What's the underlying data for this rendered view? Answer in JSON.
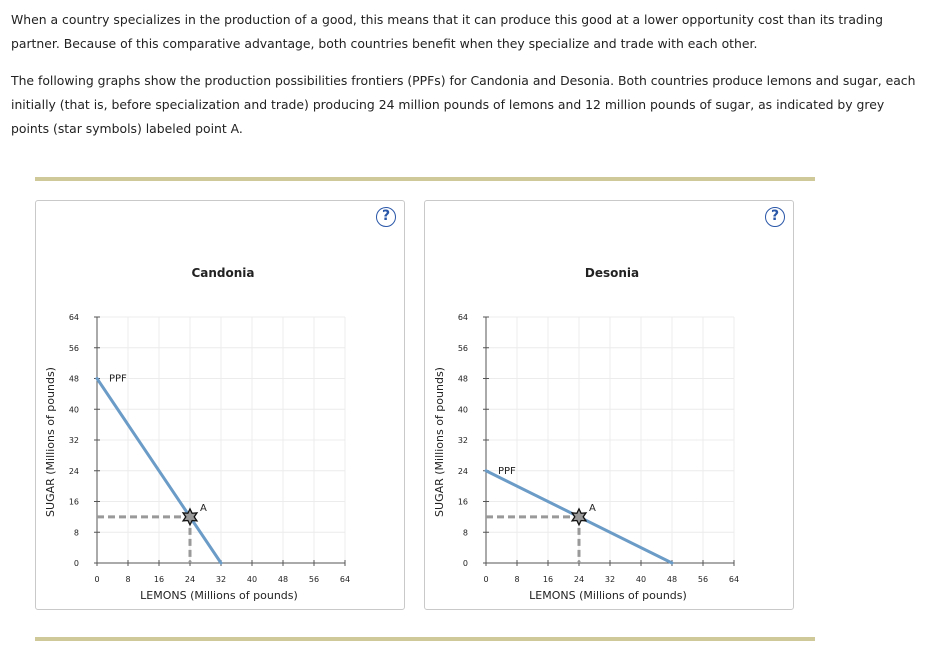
{
  "text": {
    "p1": "When a country specializes in the production of a good, this means that it can produce this good at a lower opportunity cost than its trading partner. Because of this comparative advantage, both countries benefit when they specialize and trade with each other.",
    "p2": "The following graphs show the production possibilities frontiers (PPFs) for Candonia and Desonia. Both countries produce lemons and sugar, each initially (that is, before specialization and trade) producing 24 million pounds of lemons and 12 million pounds of sugar, as indicated by grey points (star symbols) labeled point A."
  },
  "help_label": "?",
  "colors": {
    "ppf_line": "#6b9bc7",
    "dashed": "#999999",
    "rule": "#cfc99a",
    "help": "#2a57a8"
  },
  "chart_data": [
    {
      "type": "line",
      "title": "Candonia",
      "xlabel": "LEMONS (Millions of pounds)",
      "ylabel": "SUGAR (Millions of pounds)",
      "xlim": [
        0,
        64
      ],
      "ylim": [
        0,
        64
      ],
      "xticks": [
        0,
        8,
        16,
        24,
        32,
        40,
        48,
        56,
        64
      ],
      "yticks": [
        0,
        8,
        16,
        24,
        32,
        40,
        48,
        56,
        64
      ],
      "grid": true,
      "ppf": {
        "label": "PPF",
        "points": [
          [
            0,
            48
          ],
          [
            32,
            0
          ]
        ]
      },
      "point": {
        "label": "A",
        "x": 24,
        "y": 12,
        "marker": "star"
      }
    },
    {
      "type": "line",
      "title": "Desonia",
      "xlabel": "LEMONS (Millions of pounds)",
      "ylabel": "SUGAR (Millions of pounds)",
      "xlim": [
        0,
        64
      ],
      "ylim": [
        0,
        64
      ],
      "xticks": [
        0,
        8,
        16,
        24,
        32,
        40,
        48,
        56,
        64
      ],
      "yticks": [
        0,
        8,
        16,
        24,
        32,
        40,
        48,
        56,
        64
      ],
      "grid": true,
      "ppf": {
        "label": "PPF",
        "points": [
          [
            0,
            24
          ],
          [
            48,
            0
          ]
        ]
      },
      "point": {
        "label": "A",
        "x": 24,
        "y": 12,
        "marker": "star"
      }
    }
  ]
}
